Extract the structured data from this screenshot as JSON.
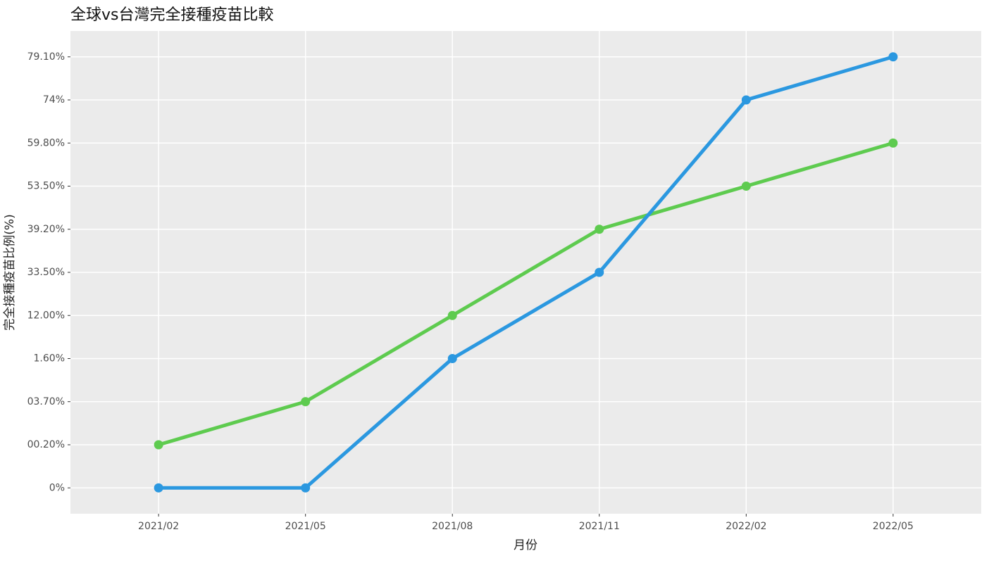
{
  "chart_data": {
    "type": "line",
    "title": "全球vs台灣完全接種疫苗比較",
    "x_label": "月份",
    "y_label": "完全接種疫苗比例(%)",
    "categories": [
      "2021/02",
      "2021/05",
      "2021/08",
      "2021/11",
      "2022/02",
      "2022/05"
    ],
    "y_categories": [
      "0%",
      "00.20%",
      "03.70%",
      "1.60%",
      "12.00%",
      "33.50%",
      "39.20%",
      "53.50%",
      "59.80%",
      "74%",
      "79.10%"
    ],
    "series": [
      {
        "color": "#5ecb4f",
        "values": [
          "00.20%",
          "03.70%",
          "12.00%",
          "39.20%",
          "53.50%",
          "59.80%"
        ]
      },
      {
        "color": "#2b98e0",
        "values": [
          "0%",
          "0%",
          "1.60%",
          "33.50%",
          "74%",
          "79.10%"
        ]
      }
    ],
    "grid": true
  }
}
